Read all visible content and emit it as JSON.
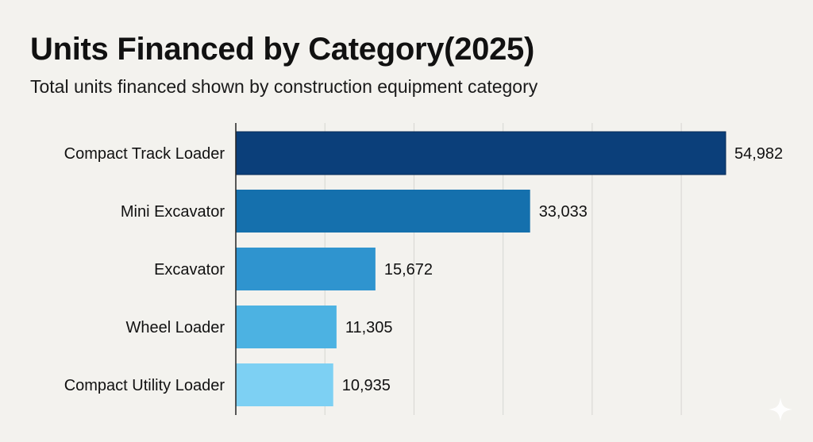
{
  "chart_data": {
    "type": "bar",
    "orientation": "horizontal",
    "title": "Units Financed by Category(2025)",
    "subtitle": "Total units financed shown by construction equipment category",
    "categories": [
      "Compact Track Loader",
      "Mini Excavator",
      "Excavator",
      "Wheel Loader",
      "Compact Utility Loader"
    ],
    "values": [
      54982,
      33033,
      15672,
      11305,
      10935
    ],
    "value_labels": [
      "54,982",
      "33,033",
      "15,672",
      "11,305",
      "10,935"
    ],
    "colors": [
      "#0b3f7a",
      "#1570ad",
      "#2f94cf",
      "#4cb2e2",
      "#7dd0f3"
    ],
    "xlabel": "",
    "ylabel": "",
    "xlim": [
      0,
      60000
    ],
    "x_gridlines": [
      10000,
      20000,
      30000,
      40000,
      50000
    ],
    "x_tick_labels_shown": false,
    "grid": true,
    "legend": "none"
  },
  "watermark_icon": "sparkle-icon"
}
